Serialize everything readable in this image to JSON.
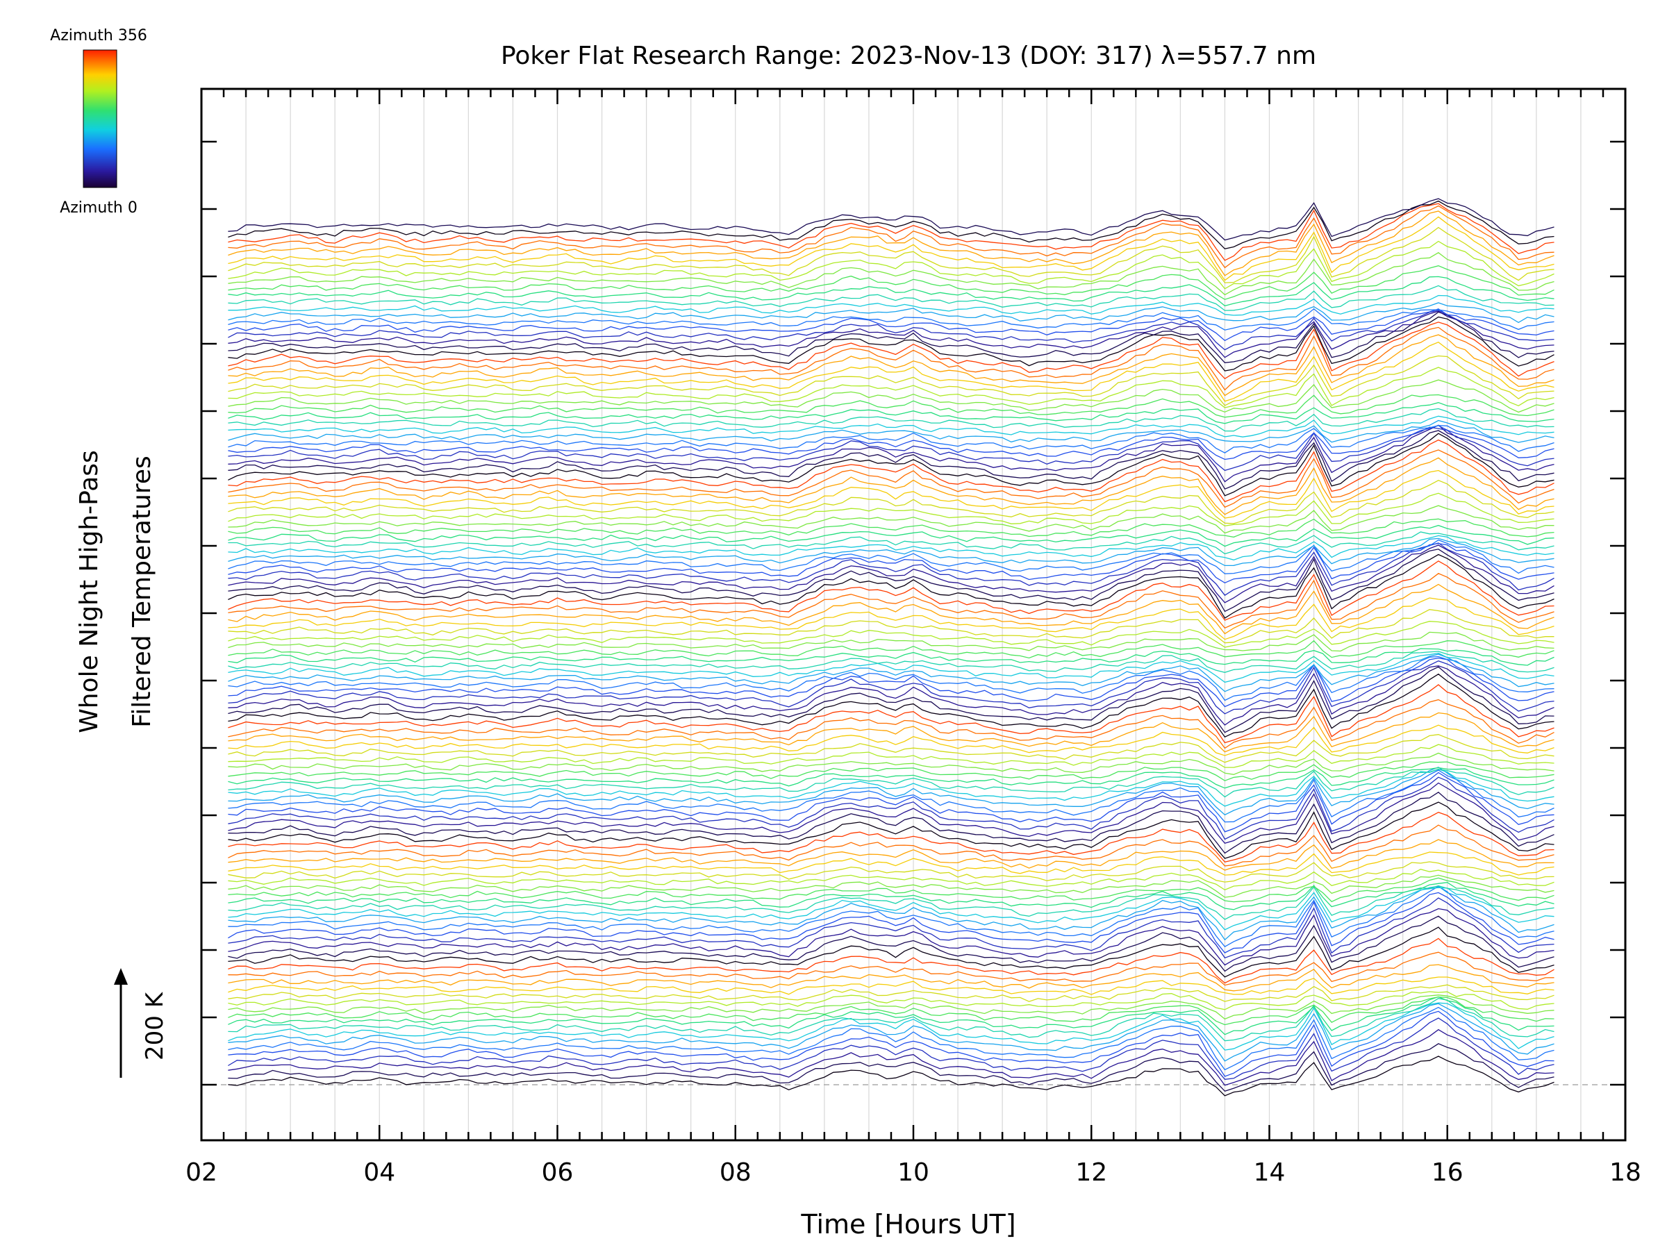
{
  "chart_data": {
    "type": "line",
    "title": "Poker Flat Research Range: 2023-Nov-13 (DOY: 317) λ=557.7 nm",
    "xlabel": "Time [Hours UT]",
    "ylabel_line1": "Whole Night High-Pass",
    "ylabel_line2": "Filtered Temperatures",
    "xlim": [
      2,
      18
    ],
    "x_ticks": [
      "02",
      "04",
      "06",
      "08",
      "10",
      "12",
      "14",
      "16",
      "18"
    ],
    "x_tick_values": [
      2,
      4,
      6,
      8,
      10,
      12,
      14,
      16,
      18
    ],
    "scale_bar_label": "200 K",
    "scale_bar_kelvin": 200,
    "legend": {
      "top_label": "Azimuth 356",
      "bottom_label": "Azimuth 0",
      "placement": "top-left",
      "azimuth_range": [
        0,
        356
      ]
    },
    "series_count": 128,
    "offset_period": 18,
    "offset_step_kelvin": 20,
    "time_range_hours": [
      2.3,
      17.25
    ],
    "vertical_grid": true,
    "reference_line": "dashed horizontal at baseline",
    "series_template": {
      "description": "Each trace is a high-pass filtered temperature time series for one azimuth, stacked with a constant offset; colors cycle from black/blue (azimuth 0) through cyan, green, yellow to red (azimuth 356).",
      "common_pattern_x": [
        2.3,
        2.5,
        3.0,
        3.5,
        4.0,
        4.5,
        5.0,
        5.5,
        6.0,
        6.5,
        7.0,
        7.5,
        8.0,
        8.6,
        9.0,
        9.3,
        9.6,
        9.8,
        10.0,
        10.3,
        10.7,
        11.3,
        11.6,
        12.0,
        12.4,
        12.8,
        13.2,
        13.5,
        13.9,
        14.3,
        14.5,
        14.7,
        15.2,
        15.9,
        16.4,
        16.8,
        17.2
      ],
      "common_pattern_kelvin": [
        0,
        4,
        8,
        3,
        9,
        2,
        6,
        3,
        8,
        2,
        5,
        3,
        2,
        -4,
        14,
        22,
        18,
        12,
        20,
        6,
        2,
        -6,
        -4,
        -5,
        12,
        26,
        22,
        -18,
        0,
        4,
        36,
        -8,
        14,
        48,
        18,
        -10,
        0
      ]
    }
  }
}
